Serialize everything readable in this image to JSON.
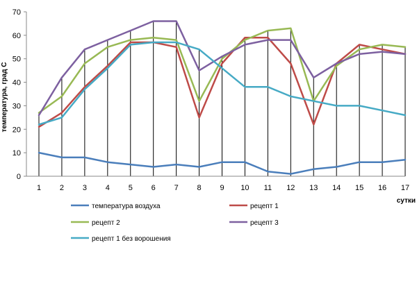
{
  "chart_data": {
    "type": "line",
    "title": "",
    "xlabel": "сутки",
    "ylabel": "температура, град С",
    "x": [
      1,
      2,
      3,
      4,
      5,
      6,
      7,
      8,
      9,
      10,
      11,
      12,
      13,
      14,
      15,
      16,
      17
    ],
    "ylim": [
      0,
      70
    ],
    "yticks": [
      0,
      10,
      20,
      30,
      40,
      50,
      60,
      70
    ],
    "grid": "vertical drop lines at each x",
    "legend_position": "bottom",
    "series": [
      {
        "name": "температура воздуха",
        "color": "#4a7ebb",
        "values": [
          10,
          8,
          8,
          6,
          5,
          4,
          5,
          4,
          6,
          6,
          2,
          1,
          3,
          4,
          6,
          6,
          7
        ]
      },
      {
        "name": "рецепт 1",
        "color": "#be4b48",
        "values": [
          21,
          27,
          38,
          47,
          57,
          57,
          55,
          25,
          48,
          59,
          59,
          48,
          22,
          48,
          56,
          54,
          52
        ]
      },
      {
        "name": "рецепт 2",
        "color": "#98b954",
        "values": [
          27,
          34,
          48,
          55,
          58,
          59,
          58,
          32,
          50,
          58,
          62,
          63,
          32,
          47,
          54,
          56,
          55
        ]
      },
      {
        "name": "рецепт 3",
        "color": "#7d60a0",
        "values": [
          26,
          42,
          54,
          58,
          62,
          66,
          66,
          45,
          51,
          56,
          58,
          58,
          42,
          48,
          52,
          53,
          52
        ]
      },
      {
        "name": "рецепт 1 без ворошения",
        "color": "#46aac5",
        "values": [
          22,
          25,
          37,
          46,
          56,
          57,
          57,
          54,
          46,
          38,
          38,
          34,
          32,
          30,
          30,
          28,
          26
        ]
      }
    ]
  }
}
